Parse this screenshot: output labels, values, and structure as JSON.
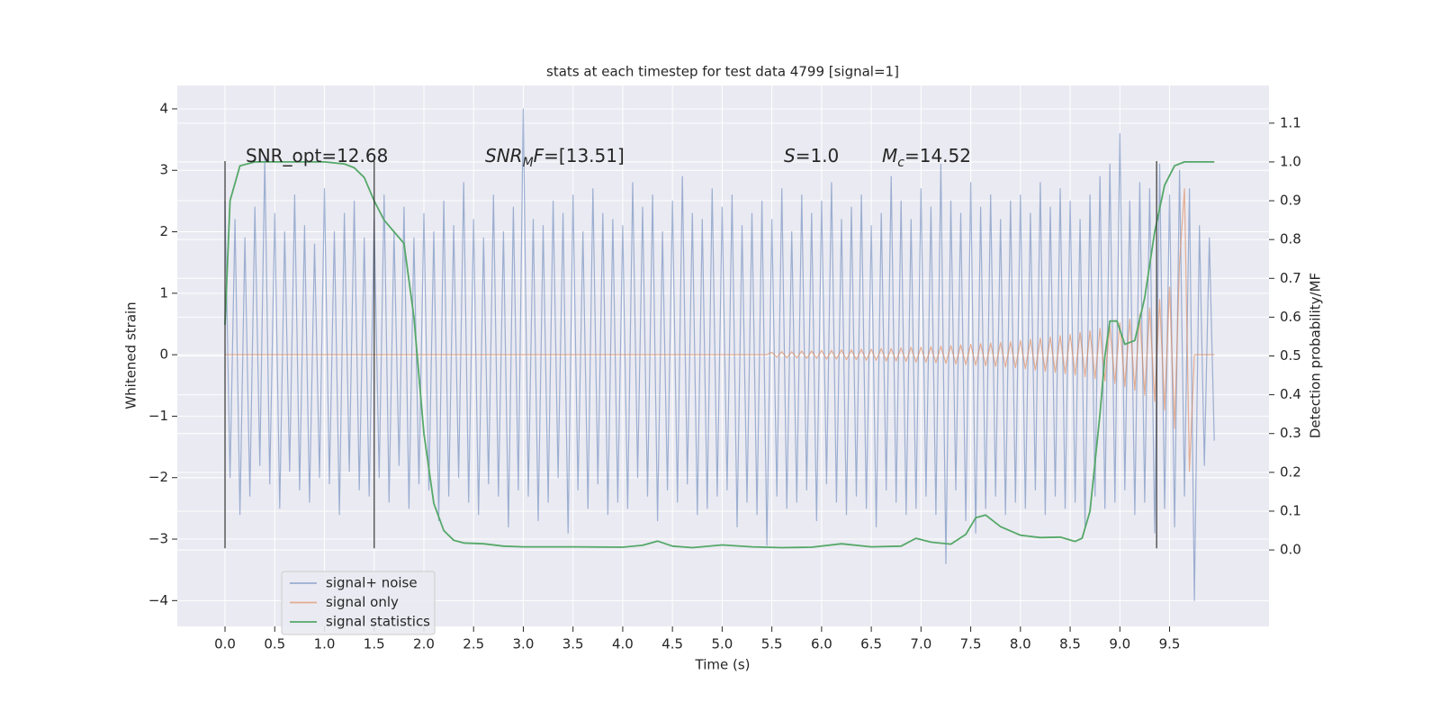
{
  "chart_data": {
    "type": "line",
    "title": "stats at each timestep for test data 4799 [signal=1]",
    "xlabel": "Time (s)",
    "ylabel": "Whitened strain",
    "y2label": "Detection probability/MF",
    "xlim": [
      -0.48,
      10.5
    ],
    "ylim": [
      -4.42,
      4.38
    ],
    "y2lim": [
      -0.197,
      1.197
    ],
    "xticks": [
      {
        "value": 0,
        "label": "0.0"
      },
      0.5,
      {
        "value": 1,
        "label": "1.0"
      },
      1.5,
      {
        "value": 2,
        "label": "2.0"
      },
      2.5,
      {
        "value": 3,
        "label": "3.0"
      },
      3.5,
      {
        "value": 4,
        "label": "4.0"
      },
      4.5,
      {
        "value": 5,
        "label": "5.0"
      },
      5.5,
      {
        "value": 6,
        "label": "6.0"
      },
      6.5,
      {
        "value": 7,
        "label": "7.0"
      },
      7.5,
      {
        "value": 8,
        "label": "8.0"
      },
      8.5,
      {
        "value": 9,
        "label": "9.0"
      },
      9.5
    ],
    "yticks": [
      {
        "value": -4,
        "label": "−4"
      },
      {
        "value": -3,
        "label": "−3"
      },
      {
        "value": -2,
        "label": "−2"
      },
      {
        "value": -1,
        "label": "−1"
      },
      0,
      1,
      2,
      3,
      4
    ],
    "y2ticks": [
      {
        "value": 0,
        "label": "0.0"
      },
      0.1,
      0.2,
      0.3,
      0.4,
      0.5,
      0.6,
      0.7,
      0.8,
      0.9,
      {
        "value": 1,
        "label": "1.0"
      },
      1.1
    ],
    "grid": true,
    "legend": "lower left",
    "vlines": [
      0,
      1.5,
      9.37
    ],
    "vline_range": [
      -3.15,
      3.15
    ],
    "vline_color": "#333333",
    "annotations": [
      [
        {
          "text": "SNR_opt=12.68"
        }
      ],
      [
        {
          "text": "SNR",
          "italic": true
        },
        {
          "text": "M",
          "italic": true,
          "sub": true
        },
        {
          "text": "F",
          "italic": true
        },
        {
          "text": "=[13.51]"
        }
      ],
      [
        {
          "text": "S",
          "italic": true
        },
        {
          "text": "=1.0"
        }
      ],
      [
        {
          "text": "M",
          "italic": true
        },
        {
          "text": "c",
          "italic": true,
          "sub": true
        },
        {
          "text": "=14.52"
        }
      ]
    ],
    "x": [
      0,
      0.05,
      0.1,
      0.15,
      0.2,
      0.25,
      0.3,
      0.35,
      0.4,
      0.45,
      0.5,
      0.55,
      0.6,
      0.65,
      0.7,
      0.75,
      0.8,
      0.85,
      0.9,
      0.95,
      1,
      1.05,
      1.1,
      1.15,
      1.2,
      1.25,
      1.3,
      1.35,
      1.4,
      1.45,
      1.5,
      1.55,
      1.6,
      1.65,
      1.7,
      1.75,
      1.8,
      1.85,
      1.9,
      1.95,
      2,
      2.05,
      2.1,
      2.15,
      2.2,
      2.25,
      2.3,
      2.35,
      2.4,
      2.45,
      2.5,
      2.55,
      2.6,
      2.65,
      2.7,
      2.75,
      2.8,
      2.85,
      2.9,
      2.95,
      3,
      3.05,
      3.1,
      3.15,
      3.2,
      3.25,
      3.3,
      3.35,
      3.4,
      3.45,
      3.5,
      3.55,
      3.6,
      3.65,
      3.7,
      3.75,
      3.8,
      3.85,
      3.9,
      3.95,
      4,
      4.05,
      4.1,
      4.15,
      4.2,
      4.25,
      4.3,
      4.35,
      4.4,
      4.45,
      4.5,
      4.55,
      4.6,
      4.65,
      4.7,
      4.75,
      4.8,
      4.85,
      4.9,
      4.95,
      5,
      5.05,
      5.1,
      5.15,
      5.2,
      5.25,
      5.3,
      5.35,
      5.4,
      5.45,
      5.5,
      5.55,
      5.6,
      5.65,
      5.7,
      5.75,
      5.8,
      5.85,
      5.9,
      5.95,
      6,
      6.05,
      6.1,
      6.15,
      6.2,
      6.25,
      6.3,
      6.35,
      6.4,
      6.45,
      6.5,
      6.55,
      6.6,
      6.65,
      6.7,
      6.75,
      6.8,
      6.85,
      6.9,
      6.95,
      7,
      7.05,
      7.1,
      7.15,
      7.2,
      7.25,
      7.3,
      7.35,
      7.4,
      7.45,
      7.5,
      7.55,
      7.6,
      7.65,
      7.7,
      7.75,
      7.8,
      7.85,
      7.9,
      7.95,
      8,
      8.05,
      8.1,
      8.15,
      8.2,
      8.25,
      8.3,
      8.35,
      8.4,
      8.45,
      8.5,
      8.55,
      8.6,
      8.65,
      8.7,
      8.75,
      8.8,
      8.85,
      8.9,
      8.95,
      9,
      9.05,
      9.1,
      9.15,
      9.2,
      9.25,
      9.3,
      9.35,
      9.4,
      9.45,
      9.5,
      9.55,
      9.6,
      9.65,
      9.7,
      9.75,
      9.8,
      9.85,
      9.9,
      9.95
    ],
    "series": [
      {
        "name": "signal+ noise",
        "color": "#4c72b0",
        "opacity": 0.5,
        "values": [
          2.5,
          -2.0,
          2.2,
          -2.6,
          1.9,
          -2.3,
          2.4,
          -1.8,
          3.2,
          -2.1,
          2.3,
          -2.5,
          2.0,
          -1.9,
          2.6,
          -2.2,
          2.1,
          -2.4,
          1.8,
          -2.0,
          2.7,
          -2.1,
          2.0,
          -2.6,
          2.3,
          -1.9,
          2.5,
          -2.2,
          1.9,
          -2.3,
          2.2,
          -2.0,
          2.6,
          -2.4,
          2.0,
          -1.8,
          2.4,
          -2.5,
          1.9,
          -2.1,
          2.3,
          -2.2,
          2.0,
          -2.7,
          2.5,
          -2.3,
          2.1,
          -2.0,
          2.8,
          -2.4,
          2.2,
          -2.6,
          1.9,
          -2.1,
          2.6,
          -2.3,
          2.0,
          -2.8,
          2.4,
          -2.2,
          4.0,
          -2.3,
          2.2,
          -2.7,
          2.1,
          -2.4,
          2.5,
          -2.0,
          2.3,
          -2.9,
          2.6,
          -2.2,
          2.0,
          -2.5,
          2.7,
          -2.1,
          2.3,
          -2.6,
          2.2,
          -2.4,
          2.1,
          -2.5,
          2.8,
          -2.0,
          2.4,
          -2.3,
          2.6,
          -2.7,
          2.0,
          -2.2,
          2.5,
          -2.4,
          2.9,
          -2.1,
          2.3,
          -2.6,
          2.2,
          -2.5,
          2.7,
          -2.3,
          2.4,
          -2.2,
          2.6,
          -2.8,
          2.1,
          -2.4,
          2.3,
          -2.6,
          2.5,
          -3.1,
          2.2,
          -2.3,
          2.7,
          -2.5,
          2.0,
          -2.4,
          2.6,
          -2.2,
          2.3,
          -2.7,
          2.5,
          -2.1,
          2.8,
          -2.4,
          2.2,
          -2.6,
          2.4,
          -2.3,
          2.6,
          -2.5,
          2.1,
          -2.8,
          2.3,
          -2.2,
          2.9,
          -2.4,
          2.5,
          -2.6,
          2.2,
          -2.5,
          2.7,
          -2.3,
          2.4,
          -2.6,
          3.1,
          -3.4,
          2.5,
          -2.2,
          2.3,
          -2.7,
          2.8,
          -2.9,
          2.4,
          -2.5,
          2.6,
          -2.3,
          2.2,
          -2.6,
          2.5,
          -2.4,
          2.6,
          -2.5,
          2.3,
          -2.2,
          2.8,
          -2.6,
          2.4,
          -2.3,
          2.7,
          -2.5,
          2.5,
          -2.4,
          2.2,
          -2.8,
          2.6,
          -2.3,
          2.9,
          -2.5,
          3.1,
          -2.4,
          3.6,
          -2.2,
          2.5,
          -2.6,
          2.8,
          -2.4,
          2.7,
          -2.9,
          3.1,
          -2.5,
          2.6,
          -2.8,
          3.0,
          -2.3,
          2.7,
          -4.0,
          2.1,
          -1.8,
          1.9,
          -1.4
        ]
      },
      {
        "name": "signal only",
        "color": "#dd8452",
        "opacity": 0.6,
        "values": [
          0,
          0,
          0,
          0,
          0,
          0,
          0,
          0,
          0,
          0,
          0,
          0,
          0,
          0,
          0,
          0,
          0,
          0,
          0,
          0,
          0,
          0,
          0,
          0,
          0,
          0,
          0,
          0,
          0,
          0,
          0,
          0,
          0,
          0,
          0,
          0,
          0,
          0,
          0,
          0,
          0,
          0,
          0,
          0,
          0,
          0,
          0,
          0,
          0,
          0,
          0,
          0,
          0,
          0,
          0,
          0,
          0,
          0,
          0,
          0,
          0,
          0,
          0,
          0,
          0,
          0,
          0,
          0,
          0,
          0,
          0,
          0,
          0,
          0,
          0,
          0,
          0,
          0,
          0,
          0,
          0,
          0,
          0,
          0,
          0,
          0,
          0,
          0,
          0,
          0,
          0,
          0,
          0,
          0,
          0,
          0,
          0,
          0,
          0,
          0,
          0,
          0,
          0,
          0,
          0,
          0,
          0,
          0,
          0,
          0,
          0.04,
          -0.04,
          0.05,
          -0.05,
          0.05,
          -0.05,
          0.06,
          -0.06,
          0.06,
          -0.06,
          0.07,
          -0.07,
          0.07,
          -0.07,
          0.08,
          -0.08,
          0.08,
          -0.08,
          0.09,
          -0.09,
          0.09,
          -0.09,
          0.1,
          -0.1,
          0.1,
          -0.1,
          0.11,
          -0.11,
          0.12,
          -0.12,
          0.12,
          -0.12,
          0.13,
          -0.13,
          0.14,
          -0.14,
          0.15,
          -0.15,
          0.16,
          -0.16,
          0.17,
          -0.17,
          0.18,
          -0.18,
          0.19,
          -0.19,
          0.2,
          -0.2,
          0.21,
          -0.21,
          0.23,
          -0.23,
          0.25,
          -0.25,
          0.27,
          -0.27,
          0.29,
          -0.29,
          0.31,
          -0.31,
          0.33,
          -0.33,
          0.36,
          -0.36,
          0.39,
          -0.39,
          0.43,
          -0.43,
          0.47,
          -0.47,
          0.52,
          -0.52,
          0.58,
          -0.58,
          0.66,
          -0.66,
          0.76,
          -0.76,
          0.9,
          -0.9,
          1.1,
          -1.2,
          1.5,
          2.7,
          -1.9,
          0,
          0,
          0,
          0,
          0
        ]
      },
      {
        "name": "signal statistics",
        "color": "#55a868",
        "axis": "y2",
        "x": [
          0,
          0.05,
          0.15,
          0.3,
          0.5,
          1.0,
          1.2,
          1.3,
          1.4,
          1.5,
          1.6,
          1.7,
          1.8,
          1.9,
          2.0,
          2.1,
          2.2,
          2.3,
          2.4,
          2.6,
          2.8,
          3.0,
          3.5,
          4.0,
          4.2,
          4.35,
          4.5,
          4.7,
          5.0,
          5.3,
          5.6,
          5.9,
          6.2,
          6.5,
          6.8,
          6.95,
          7.1,
          7.3,
          7.45,
          7.55,
          7.65,
          7.8,
          8.0,
          8.2,
          8.4,
          8.55,
          8.62,
          8.7,
          8.8,
          8.85,
          8.9,
          8.97,
          9.05,
          9.15,
          9.25,
          9.35,
          9.45,
          9.55,
          9.65,
          9.95
        ],
        "values": [
          0.58,
          0.9,
          0.99,
          1.0,
          1.0,
          1.0,
          0.995,
          0.985,
          0.96,
          0.9,
          0.85,
          0.82,
          0.79,
          0.6,
          0.3,
          0.12,
          0.05,
          0.025,
          0.018,
          0.016,
          0.01,
          0.008,
          0.008,
          0.007,
          0.012,
          0.023,
          0.01,
          0.006,
          0.013,
          0.008,
          0.006,
          0.007,
          0.016,
          0.008,
          0.01,
          0.03,
          0.02,
          0.015,
          0.04,
          0.083,
          0.09,
          0.06,
          0.038,
          0.032,
          0.033,
          0.022,
          0.03,
          0.1,
          0.35,
          0.5,
          0.59,
          0.59,
          0.53,
          0.54,
          0.65,
          0.82,
          0.94,
          0.99,
          1.0,
          1.0
        ]
      }
    ]
  }
}
